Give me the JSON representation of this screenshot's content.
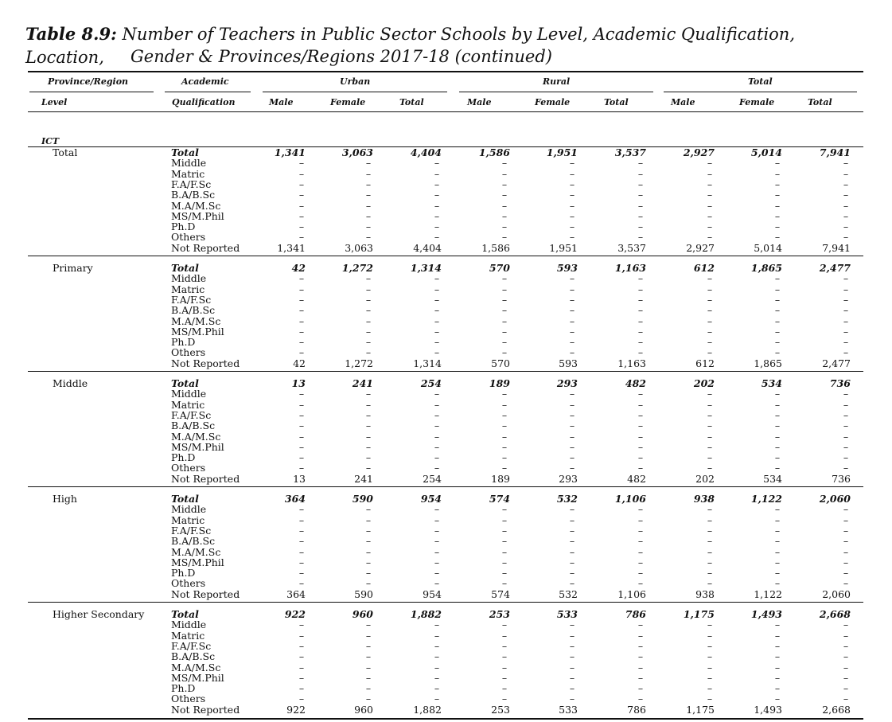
{
  "caption": {
    "label": "Table 8.9:",
    "line1": "Number of Teachers in Public Sector Schools by Level, Academic Qualification, Location,",
    "line2": "Gender & Provinces/Regions 2017-18 (continued)"
  },
  "header": {
    "province_region": "Province/Region",
    "level": "Level",
    "academic": "Academic",
    "qualification": "Qualification",
    "groups": [
      "Urban",
      "Rural",
      "Total"
    ],
    "subcols": [
      "Male",
      "Female",
      "Total"
    ]
  },
  "region": "ICT",
  "qual_labels": [
    "Total",
    "Middle",
    "Matric",
    "F.A/F.Sc",
    "B.A/B.Sc",
    "M.A/M.Sc",
    "MS/M.Phil",
    "Ph.D",
    "Others",
    "Not Reported"
  ],
  "dash": "–",
  "sections": [
    {
      "level": "Total",
      "values": [
        "1,341",
        "3,063",
        "4,404",
        "1,586",
        "1,951",
        "3,537",
        "2,927",
        "5,014",
        "7,941"
      ]
    },
    {
      "level": "Primary",
      "values": [
        "42",
        "1,272",
        "1,314",
        "570",
        "593",
        "1,163",
        "612",
        "1,865",
        "2,477"
      ]
    },
    {
      "level": "Middle",
      "values": [
        "13",
        "241",
        "254",
        "189",
        "293",
        "482",
        "202",
        "534",
        "736"
      ]
    },
    {
      "level": "High",
      "values": [
        "364",
        "590",
        "954",
        "574",
        "532",
        "1,106",
        "938",
        "1,122",
        "2,060"
      ]
    },
    {
      "level": "Higher Secondary",
      "values": [
        "922",
        "960",
        "1,882",
        "253",
        "533",
        "786",
        "1,175",
        "1,493",
        "2,668"
      ]
    }
  ]
}
